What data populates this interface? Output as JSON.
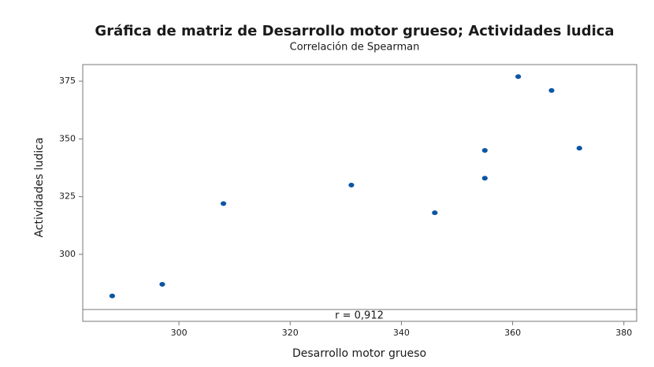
{
  "chart_data": {
    "type": "scatter",
    "title": "Gráfica de matriz de Desarrollo motor grueso; Actividades ludica",
    "subtitle": "Correlación de Spearman",
    "x_label": "Desarrollo motor grueso",
    "y_label": "Actividades ludica",
    "annotation": "r = 0,912",
    "color": "#0b56a3",
    "x": [
      288,
      297,
      308,
      331,
      346,
      355,
      355,
      361,
      367,
      372
    ],
    "values": [
      282,
      287,
      322,
      330,
      318,
      333,
      345,
      377,
      371,
      346
    ],
    "xlim": [
      282.7,
      382.3
    ],
    "xticks": [
      300,
      320,
      340,
      360,
      380
    ],
    "ylim": [
      276.1,
      382.2
    ],
    "yticks": [
      300,
      325,
      350,
      375
    ],
    "grid": false
  }
}
